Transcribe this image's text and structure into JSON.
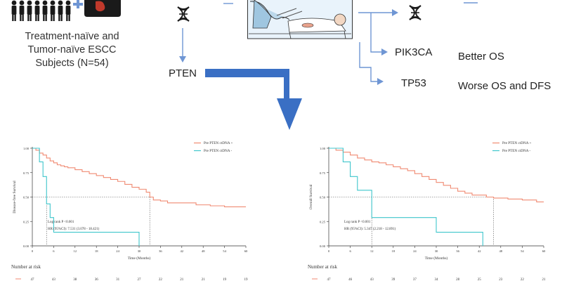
{
  "cohort": {
    "label_lines": [
      "Treatment-naïve and",
      "Tumor-naïve ESCC",
      "Subjects (N=54)"
    ]
  },
  "genes": {
    "pten": "PTEN",
    "pik3ca": "PIK3CA",
    "tp53": "TP53"
  },
  "outcomes": {
    "pik3ca": "Better OS",
    "tp53": "Worse OS and DFS"
  },
  "icons": [
    "people-group-icon",
    "stomach-organ-icon",
    "dna-icon",
    "surgery-illustration-icon",
    "arrow-icon"
  ],
  "colors": {
    "positive": "#f08a72",
    "negative": "#3fc6cc",
    "arrow": "#3a6fc4",
    "flow": "#6f96d4"
  },
  "chart_data": [
    {
      "type": "line",
      "ylabel": "Disease-free Survival",
      "xlabel": "Time (Months)",
      "x_ticks": [
        "0",
        "6",
        "12",
        "18",
        "24",
        "30",
        "36",
        "42",
        "48",
        "54",
        "60"
      ],
      "y_ticks": [
        "0.00",
        "0.25",
        "0.50",
        "0.75",
        "1.00"
      ],
      "xlim": [
        0,
        60
      ],
      "ylim": [
        0,
        1
      ],
      "legend": "top-right",
      "series": [
        {
          "name": "Pre PTEN ctDNA +",
          "color": "#f08a72",
          "points": [
            [
              0,
              1
            ],
            [
              1,
              0.98
            ],
            [
              2,
              0.95
            ],
            [
              3,
              0.93
            ],
            [
              4,
              0.9
            ],
            [
              5,
              0.87
            ],
            [
              6,
              0.85
            ],
            [
              7,
              0.83
            ],
            [
              8,
              0.82
            ],
            [
              9,
              0.81
            ],
            [
              10,
              0.8
            ],
            [
              12,
              0.78
            ],
            [
              14,
              0.76
            ],
            [
              16,
              0.74
            ],
            [
              18,
              0.72
            ],
            [
              20,
              0.7
            ],
            [
              22,
              0.68
            ],
            [
              24,
              0.66
            ],
            [
              26,
              0.63
            ],
            [
              28,
              0.6
            ],
            [
              30,
              0.58
            ],
            [
              32,
              0.55
            ],
            [
              33,
              0.5
            ],
            [
              34,
              0.47
            ],
            [
              36,
              0.46
            ],
            [
              38,
              0.44
            ],
            [
              42,
              0.44
            ],
            [
              46,
              0.42
            ],
            [
              50,
              0.41
            ],
            [
              54,
              0.4
            ],
            [
              60,
              0.4
            ]
          ]
        },
        {
          "name": "Pre PTEN ctDNA -",
          "color": "#3fc6cc",
          "points": [
            [
              0,
              1
            ],
            [
              2,
              1
            ],
            [
              2,
              0.86
            ],
            [
              3,
              0.86
            ],
            [
              3,
              0.71
            ],
            [
              4,
              0.71
            ],
            [
              4,
              0.43
            ],
            [
              5,
              0.43
            ],
            [
              5,
              0.29
            ],
            [
              6,
              0.29
            ],
            [
              6,
              0.14
            ],
            [
              30,
              0.14
            ],
            [
              30,
              0
            ]
          ]
        }
      ],
      "median_marks": [
        4,
        33
      ],
      "annotation": {
        "line1": "Log rank P <0.001",
        "line2": "HR (95%CI): 7.531 (3.078 - 18.421)"
      },
      "risk_title": "Number at risk",
      "risk_pos": [
        "47",
        "43",
        "38",
        "36",
        "31",
        "27",
        "22",
        "21",
        "21",
        "19",
        "19"
      ]
    },
    {
      "type": "line",
      "ylabel": "Overall Survival",
      "xlabel": "Time (Months)",
      "x_ticks": [
        "0",
        "6",
        "12",
        "18",
        "24",
        "30",
        "36",
        "42",
        "48",
        "54",
        "60"
      ],
      "y_ticks": [
        "0.00",
        "0.25",
        "0.50",
        "0.75",
        "1.00"
      ],
      "xlim": [
        0,
        60
      ],
      "ylim": [
        0,
        1
      ],
      "legend": "top-right",
      "series": [
        {
          "name": "Pre PTEN ctDNA +",
          "color": "#f08a72",
          "points": [
            [
              0,
              1
            ],
            [
              2,
              0.98
            ],
            [
              4,
              0.96
            ],
            [
              6,
              0.93
            ],
            [
              8,
              0.9
            ],
            [
              10,
              0.88
            ],
            [
              12,
              0.86
            ],
            [
              14,
              0.85
            ],
            [
              16,
              0.83
            ],
            [
              18,
              0.81
            ],
            [
              20,
              0.79
            ],
            [
              22,
              0.77
            ],
            [
              24,
              0.74
            ],
            [
              26,
              0.71
            ],
            [
              28,
              0.68
            ],
            [
              30,
              0.65
            ],
            [
              32,
              0.62
            ],
            [
              34,
              0.59
            ],
            [
              36,
              0.56
            ],
            [
              38,
              0.54
            ],
            [
              40,
              0.52
            ],
            [
              44,
              0.5
            ],
            [
              46,
              0.49
            ],
            [
              50,
              0.48
            ],
            [
              54,
              0.47
            ],
            [
              58,
              0.45
            ],
            [
              60,
              0.45
            ]
          ]
        },
        {
          "name": "Pre PTEN ctDNA -",
          "color": "#3fc6cc",
          "points": [
            [
              0,
              1
            ],
            [
              4,
              1
            ],
            [
              4,
              0.86
            ],
            [
              6,
              0.86
            ],
            [
              6,
              0.71
            ],
            [
              8,
              0.71
            ],
            [
              8,
              0.57
            ],
            [
              12,
              0.57
            ],
            [
              12,
              0.29
            ],
            [
              30,
              0.29
            ],
            [
              30,
              0.14
            ],
            [
              43,
              0.14
            ],
            [
              43,
              0
            ]
          ]
        }
      ],
      "median_marks": [
        12,
        46
      ],
      "annotation": {
        "line1": "Log rank P <0.001",
        "line2": "HR (95%CI): 5.347 (2.218 - 12.891)"
      },
      "risk_title": "Number at risk",
      "risk_pos": [
        "47",
        "46",
        "43",
        "39",
        "37",
        "34",
        "28",
        "25",
        "23",
        "22",
        "21"
      ]
    }
  ]
}
